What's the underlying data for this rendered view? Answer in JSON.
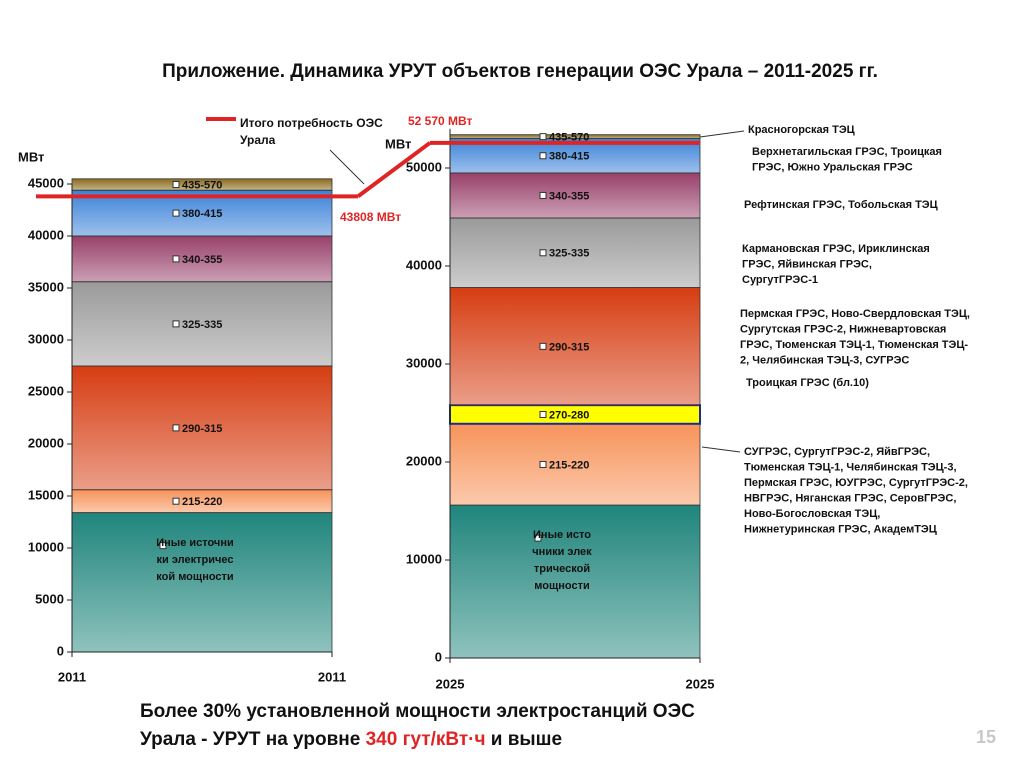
{
  "title": "Приложение. Динамика УРУТ объектов генерации ОЭС Урала – 2011-2025 гг.",
  "demand": {
    "name": "Итого потребность ОЭС Урала",
    "color": "#e02424",
    "values": [
      43808,
      52570
    ],
    "value_labels": [
      "43808 МВт",
      "52 570 МВт"
    ]
  },
  "chart_data": [
    {
      "type": "bar",
      "stacked": true,
      "ylabel": "МВт",
      "xtick_labels": [
        "2011",
        "2011"
      ],
      "ylim": [
        0,
        45000
      ],
      "yticks": [
        0,
        5000,
        10000,
        15000,
        20000,
        25000,
        30000,
        35000,
        40000,
        45000
      ],
      "series": [
        {
          "name": "Иные источники электрической мощности",
          "color": "#1f857c",
          "values": [
            13400
          ]
        },
        {
          "name": "215-220",
          "color": "#f7935a",
          "values": [
            2200
          ]
        },
        {
          "name": "290-315",
          "color": "#d63d12",
          "values": [
            11900
          ]
        },
        {
          "name": "325-335",
          "color": "#9a9a9a",
          "values": [
            8100
          ]
        },
        {
          "name": "340-355",
          "color": "#98406a",
          "values": [
            4400
          ]
        },
        {
          "name": "380-415",
          "color": "#3c82d8",
          "values": [
            4400
          ]
        },
        {
          "name": "435-570",
          "color": "#8a6a1c",
          "values": [
            1100
          ]
        }
      ]
    },
    {
      "type": "bar",
      "stacked": true,
      "ylabel": "МВт",
      "xtick_labels": [
        "2025",
        "2025"
      ],
      "ylim": [
        0,
        54000
      ],
      "yticks": [
        0,
        10000,
        20000,
        30000,
        40000,
        50000
      ],
      "series": [
        {
          "name": "Иные источники электрической мощности",
          "color": "#1f857c",
          "values": [
            15600
          ]
        },
        {
          "name": "215-220",
          "color": "#f7935a",
          "values": [
            8300
          ]
        },
        {
          "name": "270-280",
          "color": "#ffff00",
          "values": [
            1900
          ]
        },
        {
          "name": "290-315",
          "color": "#d63d12",
          "values": [
            12000
          ]
        },
        {
          "name": "325-335",
          "color": "#9a9a9a",
          "values": [
            7100
          ]
        },
        {
          "name": "340-355",
          "color": "#98406a",
          "values": [
            4600
          ]
        },
        {
          "name": "380-415",
          "color": "#3c82d8",
          "values": [
            3500
          ]
        },
        {
          "name": "435-570",
          "color": "#8a6a1c",
          "values": [
            400
          ]
        }
      ]
    }
  ],
  "annotations": [
    [
      "Красногорская ТЭЦ"
    ],
    [
      "Верхнетагильская ГРЭС, Троицкая",
      "ГРЭС, Южно Уральская ГРЭС"
    ],
    [
      "Рефтинская ГРЭС, Тобольская ТЭЦ"
    ],
    [
      "Кармановская ГРЭС, Ириклинская",
      "ГРЭС, Яйвинская ГРЭС,",
      "СургутГРЭС-1"
    ],
    [
      "Пермская ГРЭС, Ново-Свердловская ТЭЦ,",
      "Сургутская ГРЭС-2, Нижневартовская",
      "ГРЭС, Тюменская ТЭЦ-1, Тюменская ТЭЦ-",
      "2, Челябинская ТЭЦ-3, СУГРЭС"
    ],
    [
      "Троицкая ГРЭС (бл.10)"
    ],
    [
      "СУГРЭС, СургутГРЭС-2, ЯйвГРЭС,",
      "Тюменская ТЭЦ-1, Челябинская ТЭЦ-3,",
      "Пермская ГРЭС, ЮУГРЭС, СургутГРЭС-2,",
      "НВГРЭС, Няганская ГРЭС, СеровГРЭС,",
      "Ново-Богословская ТЭЦ,",
      "Нижнетуринская ГРЭС, АкадемТЭЦ"
    ]
  ],
  "footer": {
    "lines": [
      "Более 30% установленной мощности электростанций ОЭС",
      "Урала - УРУТ на уровне "
    ],
    "highlight": "340 гут/кВт·ч",
    "tail": " и выше"
  },
  "page_number": "15"
}
